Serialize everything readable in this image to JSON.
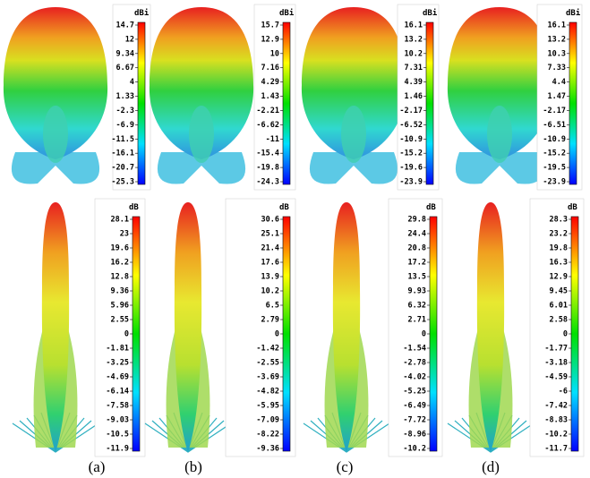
{
  "panels": [
    {
      "unit": "dBi",
      "ticks": [
        14.7,
        12,
        9.34,
        6.67,
        4,
        1.33,
        -2.3,
        -6.9,
        -11.5,
        -16.1,
        -20.7,
        -25.3
      ]
    },
    {
      "unit": "dBi",
      "ticks": [
        15.7,
        12.9,
        10,
        7.16,
        4.29,
        1.43,
        -2.21,
        -6.62,
        -11,
        -15.4,
        -19.8,
        -24.3
      ]
    },
    {
      "unit": "dBi",
      "ticks": [
        16.1,
        13.2,
        10.2,
        7.31,
        4.39,
        1.46,
        -2.17,
        -6.52,
        -10.9,
        -15.2,
        -19.6,
        -23.9
      ]
    },
    {
      "unit": "dBi",
      "ticks": [
        16.1,
        13.2,
        10.3,
        7.33,
        4.4,
        1.47,
        -2.17,
        -6.51,
        -10.9,
        -15.2,
        -19.5,
        -23.9
      ]
    },
    {
      "unit": "dB",
      "ticks": [
        28.1,
        23,
        19.6,
        16.2,
        12.8,
        9.36,
        5.96,
        2.55,
        0,
        -1.81,
        -3.25,
        -4.69,
        -6.14,
        -7.58,
        -9.03,
        -10.5,
        -11.9
      ]
    },
    {
      "unit": "dB",
      "ticks": [
        30.6,
        25.1,
        21.4,
        17.6,
        13.9,
        10.2,
        6.5,
        2.79,
        0,
        -1.42,
        -2.55,
        -3.69,
        -4.82,
        -5.95,
        -7.09,
        -8.22,
        -9.36
      ]
    },
    {
      "unit": "dB",
      "ticks": [
        29.8,
        24.4,
        20.8,
        17.2,
        13.5,
        9.93,
        6.32,
        2.71,
        0,
        -1.54,
        -2.78,
        -4.02,
        -5.25,
        -6.49,
        -7.72,
        -8.96,
        -10.2
      ]
    },
    {
      "unit": "dB",
      "ticks": [
        28.3,
        23.2,
        19.8,
        16.3,
        12.9,
        9.45,
        6.01,
        2.58,
        0,
        -1.77,
        -3.18,
        -4.59,
        -6,
        -7.42,
        -8.83,
        -10.2,
        -11.7
      ]
    }
  ],
  "captions": [
    "(a)",
    "(b)",
    "(c)",
    "(d)"
  ]
}
